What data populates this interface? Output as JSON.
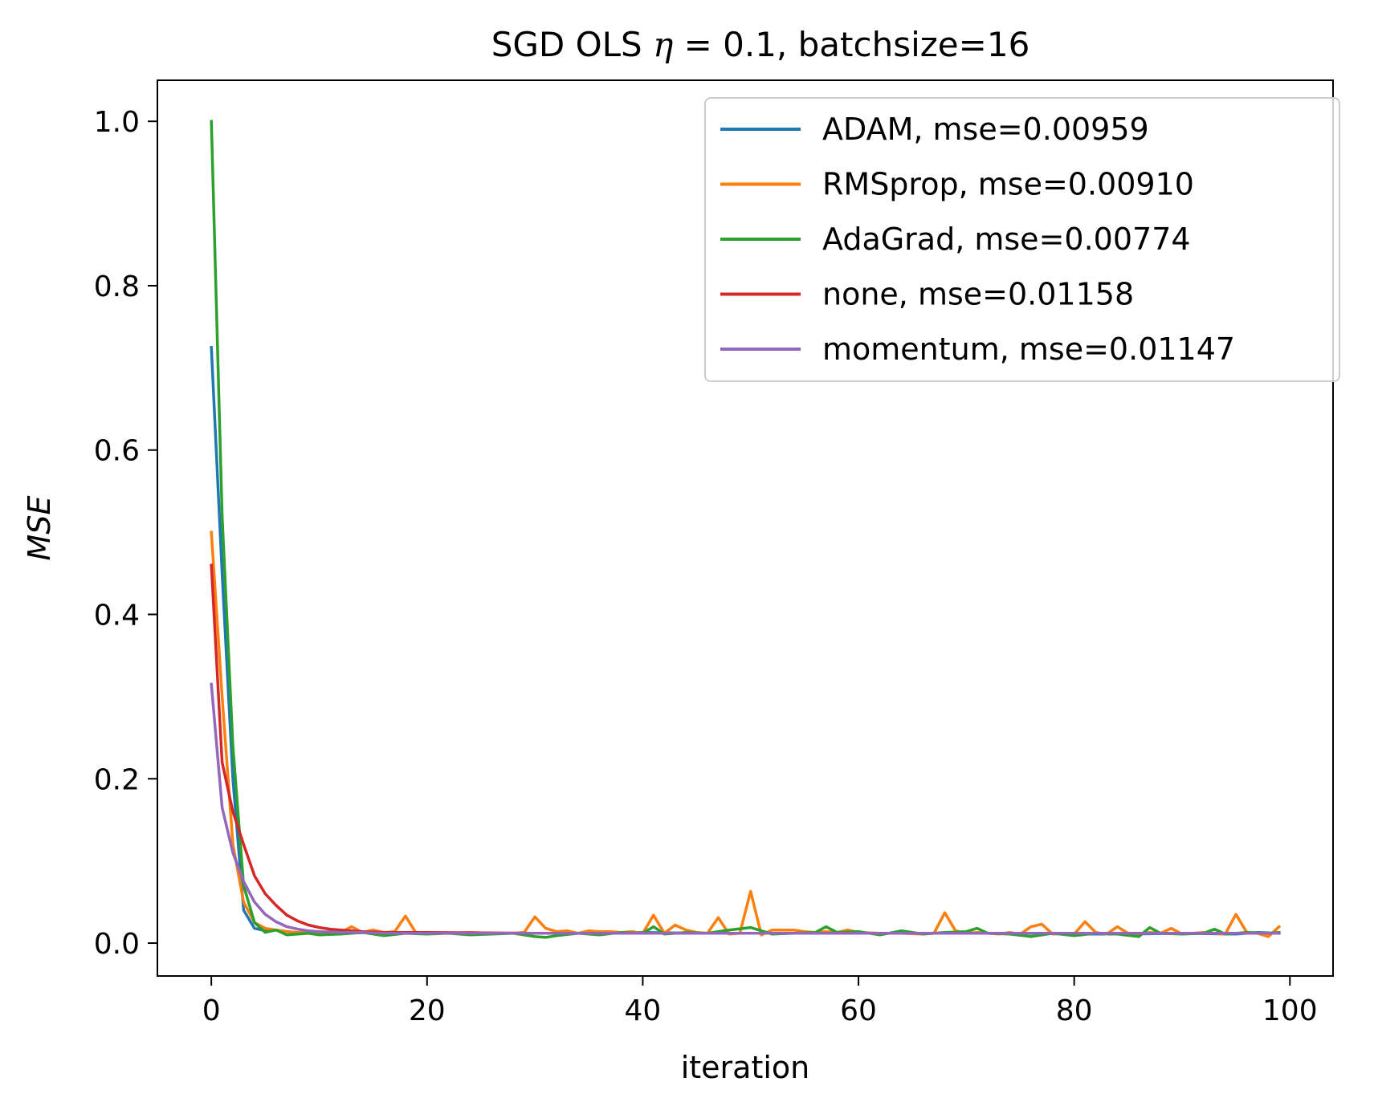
{
  "chart_data": {
    "type": "line",
    "title_parts": {
      "prefix": "SGD OLS ",
      "symbol": "η",
      "suffix": " =  0.1, batchsize=16"
    },
    "xlabel": "iteration",
    "ylabel": "MSE",
    "xlim": [
      -5,
      104
    ],
    "ylim": [
      -0.04,
      1.05
    ],
    "xticks": [
      0,
      20,
      40,
      60,
      80,
      100
    ],
    "yticks": [
      0.0,
      0.2,
      0.4,
      0.6,
      0.8,
      1.0
    ],
    "xtick_labels": [
      "0",
      "20",
      "40",
      "60",
      "80",
      "100"
    ],
    "ytick_labels": [
      "0.0",
      "0.2",
      "0.4",
      "0.6",
      "0.8",
      "1.0"
    ],
    "grid": false,
    "legend_position": "top-right",
    "series": [
      {
        "name": "ADAM, mse=0.00959",
        "color": "#1f77b4",
        "x": [
          0,
          1,
          2,
          3,
          4,
          5,
          6,
          7,
          8,
          9,
          10,
          12,
          15,
          20,
          25,
          30,
          35,
          40,
          45,
          50,
          55,
          60,
          65,
          70,
          75,
          80,
          85,
          90,
          95,
          97,
          99
        ],
        "values": [
          0.725,
          0.45,
          0.2,
          0.04,
          0.018,
          0.015,
          0.016,
          0.014,
          0.013,
          0.013,
          0.012,
          0.012,
          0.013,
          0.012,
          0.012,
          0.012,
          0.012,
          0.013,
          0.012,
          0.012,
          0.012,
          0.012,
          0.012,
          0.012,
          0.012,
          0.011,
          0.011,
          0.012,
          0.011,
          0.013,
          0.012
        ]
      },
      {
        "name": "RMSprop, mse=0.00910",
        "color": "#ff7f0e",
        "x": [
          0,
          1,
          2,
          3,
          4,
          5,
          6,
          7,
          8,
          9,
          10,
          11,
          12,
          13,
          14,
          15,
          16,
          17,
          18,
          19,
          20,
          22,
          24,
          26,
          28,
          29,
          30,
          31,
          32,
          33,
          34,
          35,
          36,
          37,
          38,
          39,
          40,
          41,
          42,
          43,
          44,
          45,
          46,
          47,
          48,
          49,
          50,
          51,
          52,
          53,
          54,
          55,
          56,
          57,
          58,
          59,
          60,
          62,
          64,
          66,
          67,
          68,
          69,
          70,
          71,
          72,
          73,
          74,
          75,
          76,
          77,
          78,
          79,
          80,
          81,
          82,
          83,
          84,
          85,
          86,
          87,
          88,
          89,
          90,
          91,
          92,
          93,
          94,
          95,
          96,
          97,
          98,
          99
        ],
        "values": [
          0.5,
          0.3,
          0.12,
          0.05,
          0.025,
          0.018,
          0.016,
          0.014,
          0.013,
          0.014,
          0.013,
          0.014,
          0.013,
          0.02,
          0.013,
          0.016,
          0.013,
          0.014,
          0.033,
          0.012,
          0.013,
          0.012,
          0.013,
          0.012,
          0.012,
          0.013,
          0.032,
          0.018,
          0.014,
          0.015,
          0.012,
          0.015,
          0.014,
          0.014,
          0.013,
          0.014,
          0.012,
          0.034,
          0.012,
          0.022,
          0.016,
          0.013,
          0.012,
          0.031,
          0.011,
          0.012,
          0.063,
          0.01,
          0.016,
          0.016,
          0.016,
          0.014,
          0.013,
          0.014,
          0.013,
          0.016,
          0.013,
          0.012,
          0.012,
          0.011,
          0.012,
          0.037,
          0.015,
          0.012,
          0.013,
          0.012,
          0.011,
          0.013,
          0.011,
          0.02,
          0.023,
          0.011,
          0.012,
          0.011,
          0.026,
          0.013,
          0.011,
          0.02,
          0.012,
          0.011,
          0.013,
          0.012,
          0.018,
          0.011,
          0.012,
          0.013,
          0.012,
          0.011,
          0.035,
          0.013,
          0.012,
          0.008,
          0.02
        ]
      },
      {
        "name": "AdaGrad, mse=0.00774",
        "color": "#2ca02c",
        "x": [
          0,
          1,
          2,
          3,
          4,
          5,
          6,
          7,
          8,
          9,
          10,
          12,
          14,
          16,
          18,
          20,
          22,
          24,
          26,
          28,
          30,
          31,
          32,
          34,
          36,
          38,
          40,
          41,
          42,
          44,
          46,
          48,
          50,
          52,
          54,
          56,
          57,
          58,
          60,
          62,
          64,
          66,
          68,
          70,
          71,
          72,
          74,
          76,
          78,
          80,
          82,
          84,
          86,
          87,
          88,
          90,
          92,
          93,
          94,
          96,
          98,
          99
        ],
        "values": [
          1.0,
          0.52,
          0.24,
          0.07,
          0.025,
          0.013,
          0.016,
          0.01,
          0.011,
          0.012,
          0.01,
          0.011,
          0.013,
          0.009,
          0.012,
          0.011,
          0.012,
          0.01,
          0.011,
          0.012,
          0.008,
          0.007,
          0.009,
          0.012,
          0.01,
          0.013,
          0.012,
          0.02,
          0.011,
          0.013,
          0.012,
          0.016,
          0.019,
          0.011,
          0.012,
          0.013,
          0.02,
          0.013,
          0.014,
          0.01,
          0.015,
          0.011,
          0.013,
          0.014,
          0.018,
          0.012,
          0.011,
          0.008,
          0.012,
          0.009,
          0.012,
          0.011,
          0.008,
          0.019,
          0.012,
          0.011,
          0.012,
          0.017,
          0.011,
          0.013,
          0.012,
          0.013
        ]
      },
      {
        "name": "none, mse=0.01158",
        "color": "#d62728",
        "x": [
          0,
          1,
          2,
          3,
          4,
          5,
          6,
          7,
          8,
          9,
          10,
          11,
          12,
          14,
          16,
          20,
          30,
          40,
          50,
          60,
          70,
          80,
          90,
          99
        ],
        "values": [
          0.46,
          0.22,
          0.16,
          0.12,
          0.082,
          0.06,
          0.046,
          0.034,
          0.027,
          0.022,
          0.019,
          0.017,
          0.016,
          0.014,
          0.013,
          0.013,
          0.012,
          0.012,
          0.012,
          0.012,
          0.012,
          0.012,
          0.012,
          0.012
        ]
      },
      {
        "name": "momentum, mse=0.01147",
        "color": "#9467bd",
        "x": [
          0,
          1,
          2,
          3,
          4,
          5,
          6,
          7,
          8,
          9,
          10,
          12,
          14,
          16,
          20,
          30,
          40,
          50,
          60,
          70,
          80,
          90,
          99
        ],
        "values": [
          0.315,
          0.165,
          0.11,
          0.075,
          0.05,
          0.035,
          0.026,
          0.02,
          0.017,
          0.015,
          0.014,
          0.013,
          0.013,
          0.012,
          0.012,
          0.012,
          0.012,
          0.012,
          0.012,
          0.012,
          0.012,
          0.012,
          0.012
        ]
      }
    ]
  }
}
